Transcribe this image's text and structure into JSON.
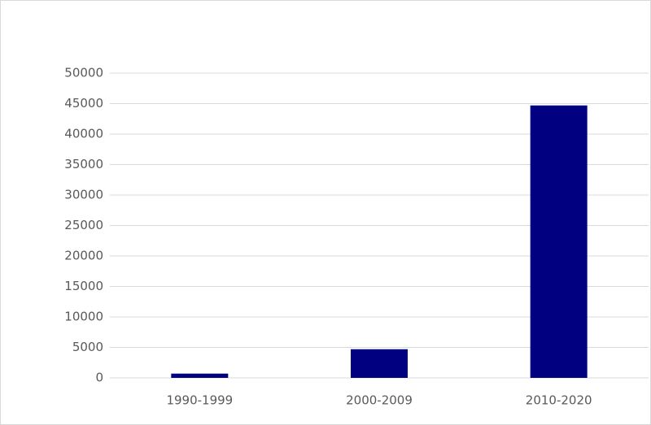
{
  "chart_data": {
    "type": "bar",
    "categories": [
      "1990-1999",
      "2000-2009",
      "2010-2020"
    ],
    "values": [
      700,
      4700,
      44700
    ],
    "color": "#000080",
    "ylim": [
      0,
      50000
    ],
    "yticks": [
      0,
      5000,
      10000,
      15000,
      20000,
      25000,
      30000,
      35000,
      40000,
      45000,
      50000
    ],
    "grid": true
  }
}
